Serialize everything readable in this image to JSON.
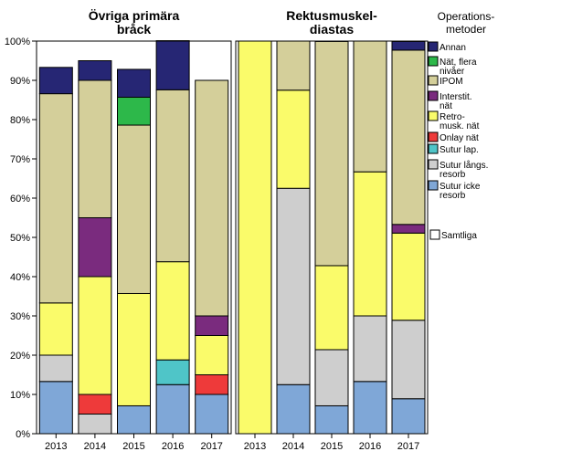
{
  "chart_data": {
    "type": "bar",
    "stacked": true,
    "categories": [
      "2013",
      "2014",
      "2015",
      "2016",
      "2017"
    ],
    "y_ticks": [
      "0%",
      "10%",
      "20%",
      "30%",
      "40%",
      "50%",
      "60%",
      "70%",
      "80%",
      "90%",
      "100%"
    ],
    "ylim": [
      0,
      100
    ],
    "xlabel": "",
    "ylabel": "",
    "legend_placement": "right",
    "legend": {
      "title_lines": [
        "Operations-",
        "metoder"
      ],
      "series_order": [
        "annan",
        "nat_flera",
        "ipom",
        "interstit",
        "retro",
        "onlay",
        "sutur_lap",
        "sutur_langs",
        "sutur_icke"
      ],
      "items": {
        "annan": {
          "label_lines": [
            "Annan"
          ],
          "color": "#262674"
        },
        "nat_flera": {
          "label_lines": [
            "Nät, flera",
            "nivåer"
          ],
          "color": "#2db84a"
        },
        "ipom": {
          "label_lines": [
            "IPOM"
          ],
          "color": "#d4cf9a"
        },
        "interstit": {
          "label_lines": [
            "Interstit.",
            "nät"
          ],
          "color": "#7a2b7e"
        },
        "retro": {
          "label_lines": [
            "Retro-",
            "musk. nät"
          ],
          "color": "#fafb6a"
        },
        "onlay": {
          "label_lines": [
            "Onlay nät"
          ],
          "color": "#ee3a3a"
        },
        "sutur_lap": {
          "label_lines": [
            "Sutur lap."
          ],
          "color": "#4fc5c8"
        },
        "sutur_langs": {
          "label_lines": [
            "Sutur långs.",
            "resorb"
          ],
          "color": "#cecece"
        },
        "sutur_icke": {
          "label_lines": [
            "Sutur icke",
            "resorb"
          ],
          "color": "#7fa7d7"
        }
      },
      "extra_item": {
        "label": "Samtliga",
        "color": "#ffffff"
      }
    },
    "panels": [
      {
        "title_lines": [
          "Övriga primära",
          "bråck"
        ],
        "series": [
          {
            "key": "sutur_icke",
            "values": [
              13.3,
              0,
              7.1,
              12.5,
              10
            ]
          },
          {
            "key": "sutur_langs",
            "values": [
              6.7,
              5,
              0,
              0,
              0
            ]
          },
          {
            "key": "sutur_lap",
            "values": [
              0,
              0,
              0,
              6.3,
              0
            ]
          },
          {
            "key": "onlay",
            "values": [
              0,
              5,
              0,
              0,
              5
            ]
          },
          {
            "key": "retro",
            "values": [
              13.3,
              30,
              28.6,
              25,
              10
            ]
          },
          {
            "key": "interstit",
            "values": [
              0,
              15,
              0,
              0,
              5
            ]
          },
          {
            "key": "ipom",
            "values": [
              53.3,
              35,
              42.9,
              43.8,
              60
            ]
          },
          {
            "key": "nat_flera",
            "values": [
              0,
              0,
              7.1,
              0,
              0
            ]
          },
          {
            "key": "annan",
            "values": [
              6.7,
              5,
              7.1,
              12.5,
              0
            ]
          }
        ]
      },
      {
        "title_lines": [
          "Rektusmuskel-",
          "diastas"
        ],
        "series": [
          {
            "key": "sutur_icke",
            "values": [
              0,
              12.5,
              7.1,
              13.3,
              8.9
            ]
          },
          {
            "key": "sutur_langs",
            "values": [
              0,
              50,
              14.3,
              16.7,
              20
            ]
          },
          {
            "key": "sutur_lap",
            "values": [
              0,
              0,
              0,
              0,
              0
            ]
          },
          {
            "key": "onlay",
            "values": [
              0,
              0,
              0,
              0,
              0
            ]
          },
          {
            "key": "retro",
            "values": [
              100,
              25,
              21.4,
              36.7,
              22.2
            ]
          },
          {
            "key": "interstit",
            "values": [
              0,
              0,
              0,
              0,
              2.2
            ]
          },
          {
            "key": "ipom",
            "values": [
              0,
              12.5,
              57.1,
              33.3,
              44.4
            ]
          },
          {
            "key": "nat_flera",
            "values": [
              0,
              0,
              0,
              0,
              0
            ]
          },
          {
            "key": "annan",
            "values": [
              0,
              0,
              0,
              0,
              2.2
            ]
          }
        ]
      }
    ]
  }
}
